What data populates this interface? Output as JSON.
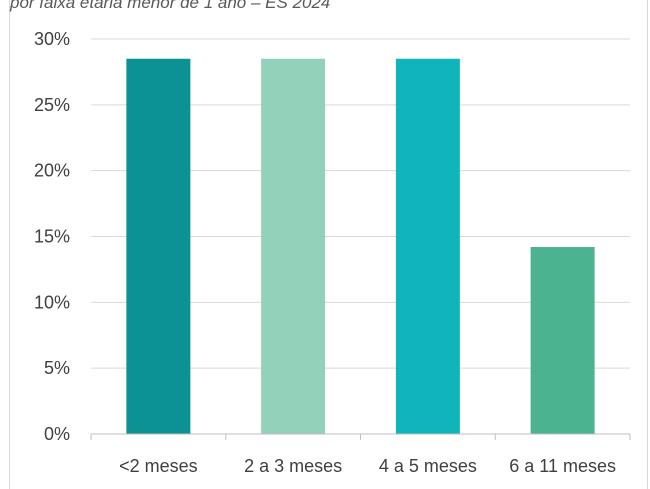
{
  "chart_title_fragment": "por faixa etária menor de 1 ano – ES 2024",
  "chart_data": {
    "type": "bar",
    "title": "por faixa etária menor de 1 ano – ES 2024",
    "categories": [
      "<2 meses",
      "2 a 3 meses",
      "4 a 5 meses",
      "6 a 11 meses"
    ],
    "values": [
      28.5,
      28.5,
      28.5,
      14.2
    ],
    "colors": [
      "#0c9194",
      "#93d1ba",
      "#0fb5ba",
      "#4bb38f"
    ],
    "ylim": [
      0,
      30
    ],
    "yticks": [
      0,
      5,
      10,
      15,
      20,
      25,
      30
    ],
    "ytick_labels": [
      "0%",
      "5%",
      "10%",
      "15%",
      "20%",
      "25%",
      "30%"
    ],
    "grid": true,
    "legend": "none",
    "xlabel": "",
    "ylabel": ""
  }
}
